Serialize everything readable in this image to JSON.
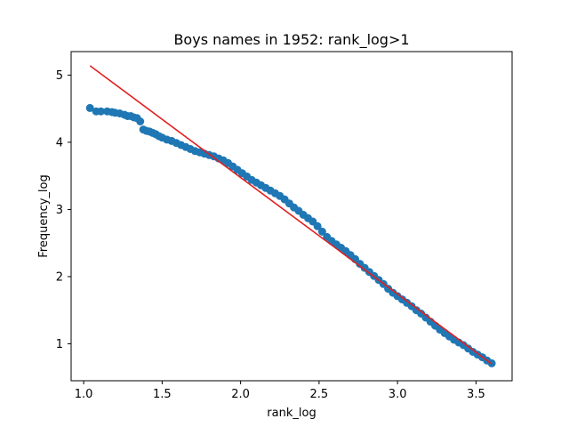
{
  "chart_data": {
    "type": "scatter",
    "title": "Boys names in 1952: rank_log>1",
    "xlabel": "rank_log",
    "ylabel": "Frequency_log",
    "xlim": [
      0.92,
      3.73
    ],
    "ylim": [
      0.45,
      5.35
    ],
    "xticks": [
      1.0,
      1.5,
      2.0,
      2.5,
      3.0,
      3.5
    ],
    "xtick_labels": [
      "1.0",
      "1.5",
      "2.0",
      "2.5",
      "3.0",
      "3.5"
    ],
    "yticks": [
      1,
      2,
      3,
      4,
      5
    ],
    "ytick_labels": [
      "1",
      "2",
      "3",
      "4",
      "5"
    ],
    "grid": false,
    "colors": {
      "points": "#1f77b4",
      "fit_line": "#e02020"
    },
    "series": [
      {
        "values": [
          [
            1.04,
            4.51
          ],
          [
            1.08,
            4.46
          ],
          [
            1.11,
            4.46
          ],
          [
            1.15,
            4.46
          ],
          [
            1.18,
            4.45
          ],
          [
            1.2,
            4.44
          ],
          [
            1.23,
            4.43
          ],
          [
            1.26,
            4.41
          ],
          [
            1.28,
            4.39
          ],
          [
            1.3,
            4.39
          ],
          [
            1.32,
            4.37
          ],
          [
            1.34,
            4.36
          ],
          [
            1.36,
            4.31
          ],
          [
            1.38,
            4.19
          ],
          [
            1.4,
            4.17
          ],
          [
            1.42,
            4.16
          ],
          [
            1.44,
            4.14
          ],
          [
            1.46,
            4.12
          ],
          [
            1.48,
            4.09
          ],
          [
            1.5,
            4.07
          ],
          [
            1.53,
            4.04
          ],
          [
            1.56,
            4.02
          ],
          [
            1.59,
            3.99
          ],
          [
            1.62,
            3.96
          ],
          [
            1.65,
            3.93
          ],
          [
            1.68,
            3.9
          ],
          [
            1.71,
            3.87
          ],
          [
            1.74,
            3.85
          ],
          [
            1.77,
            3.83
          ],
          [
            1.8,
            3.81
          ],
          [
            1.83,
            3.79
          ],
          [
            1.86,
            3.76
          ],
          [
            1.89,
            3.73
          ],
          [
            1.92,
            3.69
          ],
          [
            1.95,
            3.64
          ],
          [
            1.98,
            3.59
          ],
          [
            2.01,
            3.54
          ],
          [
            2.04,
            3.49
          ],
          [
            2.07,
            3.44
          ],
          [
            2.1,
            3.4
          ],
          [
            2.13,
            3.36
          ],
          [
            2.16,
            3.32
          ],
          [
            2.19,
            3.28
          ],
          [
            2.22,
            3.24
          ],
          [
            2.25,
            3.2
          ],
          [
            2.28,
            3.15
          ],
          [
            2.31,
            3.09
          ],
          [
            2.34,
            3.03
          ],
          [
            2.37,
            2.98
          ],
          [
            2.4,
            2.92
          ],
          [
            2.43,
            2.87
          ],
          [
            2.46,
            2.82
          ],
          [
            2.49,
            2.75
          ],
          [
            2.52,
            2.67
          ],
          [
            2.55,
            2.59
          ],
          [
            2.58,
            2.53
          ],
          [
            2.61,
            2.48
          ],
          [
            2.64,
            2.43
          ],
          [
            2.67,
            2.38
          ],
          [
            2.7,
            2.32
          ],
          [
            2.73,
            2.26
          ],
          [
            2.76,
            2.19
          ],
          [
            2.79,
            2.13
          ],
          [
            2.82,
            2.07
          ],
          [
            2.85,
            2.01
          ],
          [
            2.88,
            1.95
          ],
          [
            2.91,
            1.89
          ],
          [
            2.94,
            1.82
          ],
          [
            2.97,
            1.76
          ],
          [
            3.0,
            1.71
          ],
          [
            3.03,
            1.66
          ],
          [
            3.06,
            1.61
          ],
          [
            3.09,
            1.56
          ],
          [
            3.12,
            1.5
          ],
          [
            3.15,
            1.45
          ],
          [
            3.18,
            1.39
          ],
          [
            3.21,
            1.33
          ],
          [
            3.24,
            1.27
          ],
          [
            3.27,
            1.21
          ],
          [
            3.3,
            1.16
          ],
          [
            3.33,
            1.11
          ],
          [
            3.36,
            1.06
          ],
          [
            3.39,
            1.02
          ],
          [
            3.42,
            0.98
          ],
          [
            3.45,
            0.93
          ],
          [
            3.48,
            0.88
          ],
          [
            3.51,
            0.84
          ],
          [
            3.54,
            0.8
          ],
          [
            3.57,
            0.75
          ],
          [
            3.6,
            0.71
          ]
        ]
      }
    ],
    "fit_line": {
      "x": [
        1.04,
        3.6
      ],
      "y": [
        5.14,
        0.7
      ]
    }
  }
}
